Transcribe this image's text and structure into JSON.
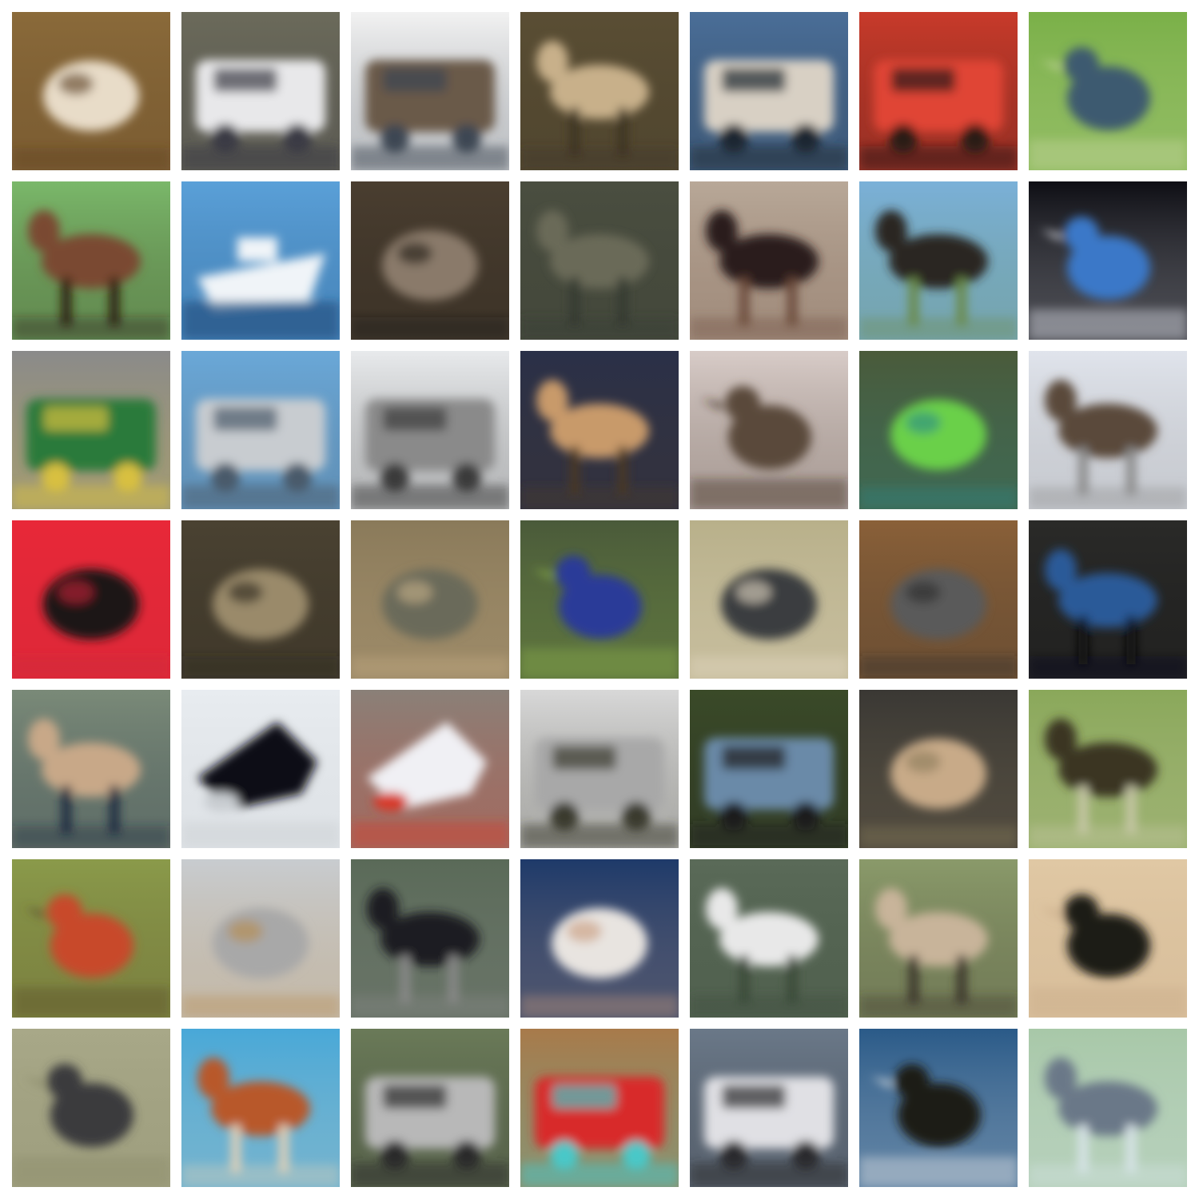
{
  "grid": {
    "rows": 7,
    "cols": 7,
    "background": "#ffffff",
    "style": "blurry low-resolution color thumbnails",
    "tiles": [
      {
        "subject": "frog",
        "bg": "#8a6a3a",
        "fg": "#e8dcc8",
        "accent": "#5a3e1f",
        "shape": "blob"
      },
      {
        "subject": "truck",
        "bg": "#6b6a5a",
        "fg": "#e8e8ea",
        "accent": "#3a3a44",
        "shape": "vehicle"
      },
      {
        "subject": "truck",
        "bg": "#f2f2f2",
        "fg": "#6a5a48",
        "accent": "#3c4652",
        "shape": "vehicle"
      },
      {
        "subject": "deer",
        "bg": "#5a4e34",
        "fg": "#c8b08a",
        "accent": "#3c3424",
        "shape": "animal"
      },
      {
        "subject": "automobile",
        "bg": "#4a6e98",
        "fg": "#d8d0c4",
        "accent": "#1e2830",
        "shape": "vehicle"
      },
      {
        "subject": "automobile",
        "bg": "#c83a2a",
        "fg": "#e04434",
        "accent": "#2a1a18",
        "shape": "vehicle"
      },
      {
        "subject": "bird",
        "bg": "#7ab048",
        "fg": "#3e5a70",
        "accent": "#c8d8a0",
        "shape": "bird"
      },
      {
        "subject": "horse",
        "bg": "#7ab86a",
        "fg": "#7a4a30",
        "accent": "#2a1a10",
        "shape": "animal"
      },
      {
        "subject": "ship",
        "bg": "#5aa0d8",
        "fg": "#f0f4f8",
        "accent": "#1e4a78",
        "shape": "ship"
      },
      {
        "subject": "cat",
        "bg": "#4a3e30",
        "fg": "#8a7a6a",
        "accent": "#1e1a14",
        "shape": "blob"
      },
      {
        "subject": "deer",
        "bg": "#4a4e40",
        "fg": "#6a6a58",
        "accent": "#363a30",
        "shape": "animal"
      },
      {
        "subject": "horse",
        "bg": "#b8a898",
        "fg": "#2a1e1a",
        "accent": "#6a4a3a",
        "shape": "animal"
      },
      {
        "subject": "horse",
        "bg": "#7ab0d8",
        "fg": "#2a2620",
        "accent": "#6a8a4a",
        "shape": "animal"
      },
      {
        "subject": "bird",
        "bg": "#0e0e14",
        "fg": "#3a78c8",
        "accent": "#e8ecf4",
        "shape": "bird"
      },
      {
        "subject": "truck",
        "bg": "#8a8a8a",
        "fg": "#2a7a3a",
        "accent": "#d8c040",
        "shape": "vehicle"
      },
      {
        "subject": "truck",
        "bg": "#6aa8d8",
        "fg": "#c8ccd0",
        "accent": "#4a5a6a",
        "shape": "vehicle"
      },
      {
        "subject": "truck",
        "bg": "#e8eaec",
        "fg": "#8a8a8a",
        "accent": "#3a3a3a",
        "shape": "vehicle"
      },
      {
        "subject": "dog",
        "bg": "#2a3048",
        "fg": "#c89a6a",
        "accent": "#4a3828",
        "shape": "animal"
      },
      {
        "subject": "bird",
        "bg": "#d8ccc8",
        "fg": "#5a4a3a",
        "accent": "#3a2a1e",
        "shape": "bird"
      },
      {
        "subject": "frog",
        "bg": "#4a5a3a",
        "fg": "#6ad048",
        "accent": "#2a8a8a",
        "shape": "blob"
      },
      {
        "subject": "deer",
        "bg": "#e0e4ec",
        "fg": "#5a4a3a",
        "accent": "#8a8a8a",
        "shape": "animal"
      },
      {
        "subject": "frog",
        "bg": "#e82838",
        "fg": "#1e1218",
        "accent": "#c82838",
        "shape": "blob"
      },
      {
        "subject": "frog",
        "bg": "#4a4232",
        "fg": "#9a8a6a",
        "accent": "#2a241a",
        "shape": "blob"
      },
      {
        "subject": "frog",
        "bg": "#8a7a5a",
        "fg": "#6a6a5a",
        "accent": "#c8b088",
        "shape": "blob"
      },
      {
        "subject": "bird",
        "bg": "#4a5a3a",
        "fg": "#2a3a98",
        "accent": "#8ab048",
        "shape": "bird"
      },
      {
        "subject": "frog",
        "bg": "#b8b08a",
        "fg": "#3a3e40",
        "accent": "#e8dcc8",
        "shape": "blob"
      },
      {
        "subject": "cat",
        "bg": "#8a6038",
        "fg": "#5a5a5a",
        "accent": "#2a2a2a",
        "shape": "blob"
      },
      {
        "subject": "horse",
        "bg": "#2a2a28",
        "fg": "#2a5a98",
        "accent": "#0e0e10",
        "shape": "animal"
      },
      {
        "subject": "deer",
        "bg": "#7a8a78",
        "fg": "#c8a888",
        "accent": "#1e2a40",
        "shape": "animal"
      },
      {
        "subject": "airplane",
        "bg": "#e8ecf0",
        "fg": "#0e0e14",
        "accent": "#c8ccd0",
        "shape": "plane"
      },
      {
        "subject": "airplane",
        "bg": "#8a8078",
        "fg": "#f0f0f4",
        "accent": "#d83a2a",
        "shape": "plane"
      },
      {
        "subject": "truck",
        "bg": "#d8d8d8",
        "fg": "#a8a8a8",
        "accent": "#3a3a2e",
        "shape": "vehicle"
      },
      {
        "subject": "automobile",
        "bg": "#3a4a28",
        "fg": "#6a8aa8",
        "accent": "#1e1e1e",
        "shape": "vehicle"
      },
      {
        "subject": "cat",
        "bg": "#3a3834",
        "fg": "#c8aa88",
        "accent": "#8a7a5a",
        "shape": "blob"
      },
      {
        "subject": "deer",
        "bg": "#8aa85a",
        "fg": "#3a3424",
        "accent": "#c8c8a8",
        "shape": "animal"
      },
      {
        "subject": "bird",
        "bg": "#8a9a4a",
        "fg": "#c84a2a",
        "accent": "#5a4a2a",
        "shape": "bird"
      },
      {
        "subject": "cat",
        "bg": "#c8ccd0",
        "fg": "#a8a8a8",
        "accent": "#b88a48",
        "shape": "blob"
      },
      {
        "subject": "horse",
        "bg": "#5a6a58",
        "fg": "#1e1e20",
        "accent": "#8a8a8a",
        "shape": "animal"
      },
      {
        "subject": "cat",
        "bg": "#1e3a6a",
        "fg": "#e8e4e0",
        "accent": "#c89a7a",
        "shape": "blob"
      },
      {
        "subject": "dog",
        "bg": "#5a6a58",
        "fg": "#e8e8e8",
        "accent": "#3a4a38",
        "shape": "animal"
      },
      {
        "subject": "dog",
        "bg": "#8a9a6a",
        "fg": "#c8b49a",
        "accent": "#3a342a",
        "shape": "animal"
      },
      {
        "subject": "bird",
        "bg": "#e0c8a4",
        "fg": "#1e1a18",
        "accent": "#c8aa88",
        "shape": "bird"
      },
      {
        "subject": "bird",
        "bg": "#a8a888",
        "fg": "#3a3a3e",
        "accent": "#8a8a6a",
        "shape": "bird"
      },
      {
        "subject": "horse",
        "bg": "#48a8d8",
        "fg": "#b8582a",
        "accent": "#e0d0b8",
        "shape": "animal"
      },
      {
        "subject": "automobile",
        "bg": "#6a7a58",
        "fg": "#b8b8b8",
        "accent": "#2a2a2a",
        "shape": "vehicle"
      },
      {
        "subject": "automobile",
        "bg": "#a87a4a",
        "fg": "#d82a2a",
        "accent": "#48c8c8",
        "shape": "vehicle"
      },
      {
        "subject": "automobile",
        "bg": "#6a7888",
        "fg": "#e0e0e4",
        "accent": "#2a2a2e",
        "shape": "vehicle"
      },
      {
        "subject": "bird",
        "bg": "#2a5a88",
        "fg": "#1e1a18",
        "accent": "#e8e8e8",
        "shape": "bird"
      },
      {
        "subject": "deer",
        "bg": "#a8c8a8",
        "fg": "#6a7888",
        "accent": "#d8e4e8",
        "shape": "animal"
      }
    ]
  }
}
